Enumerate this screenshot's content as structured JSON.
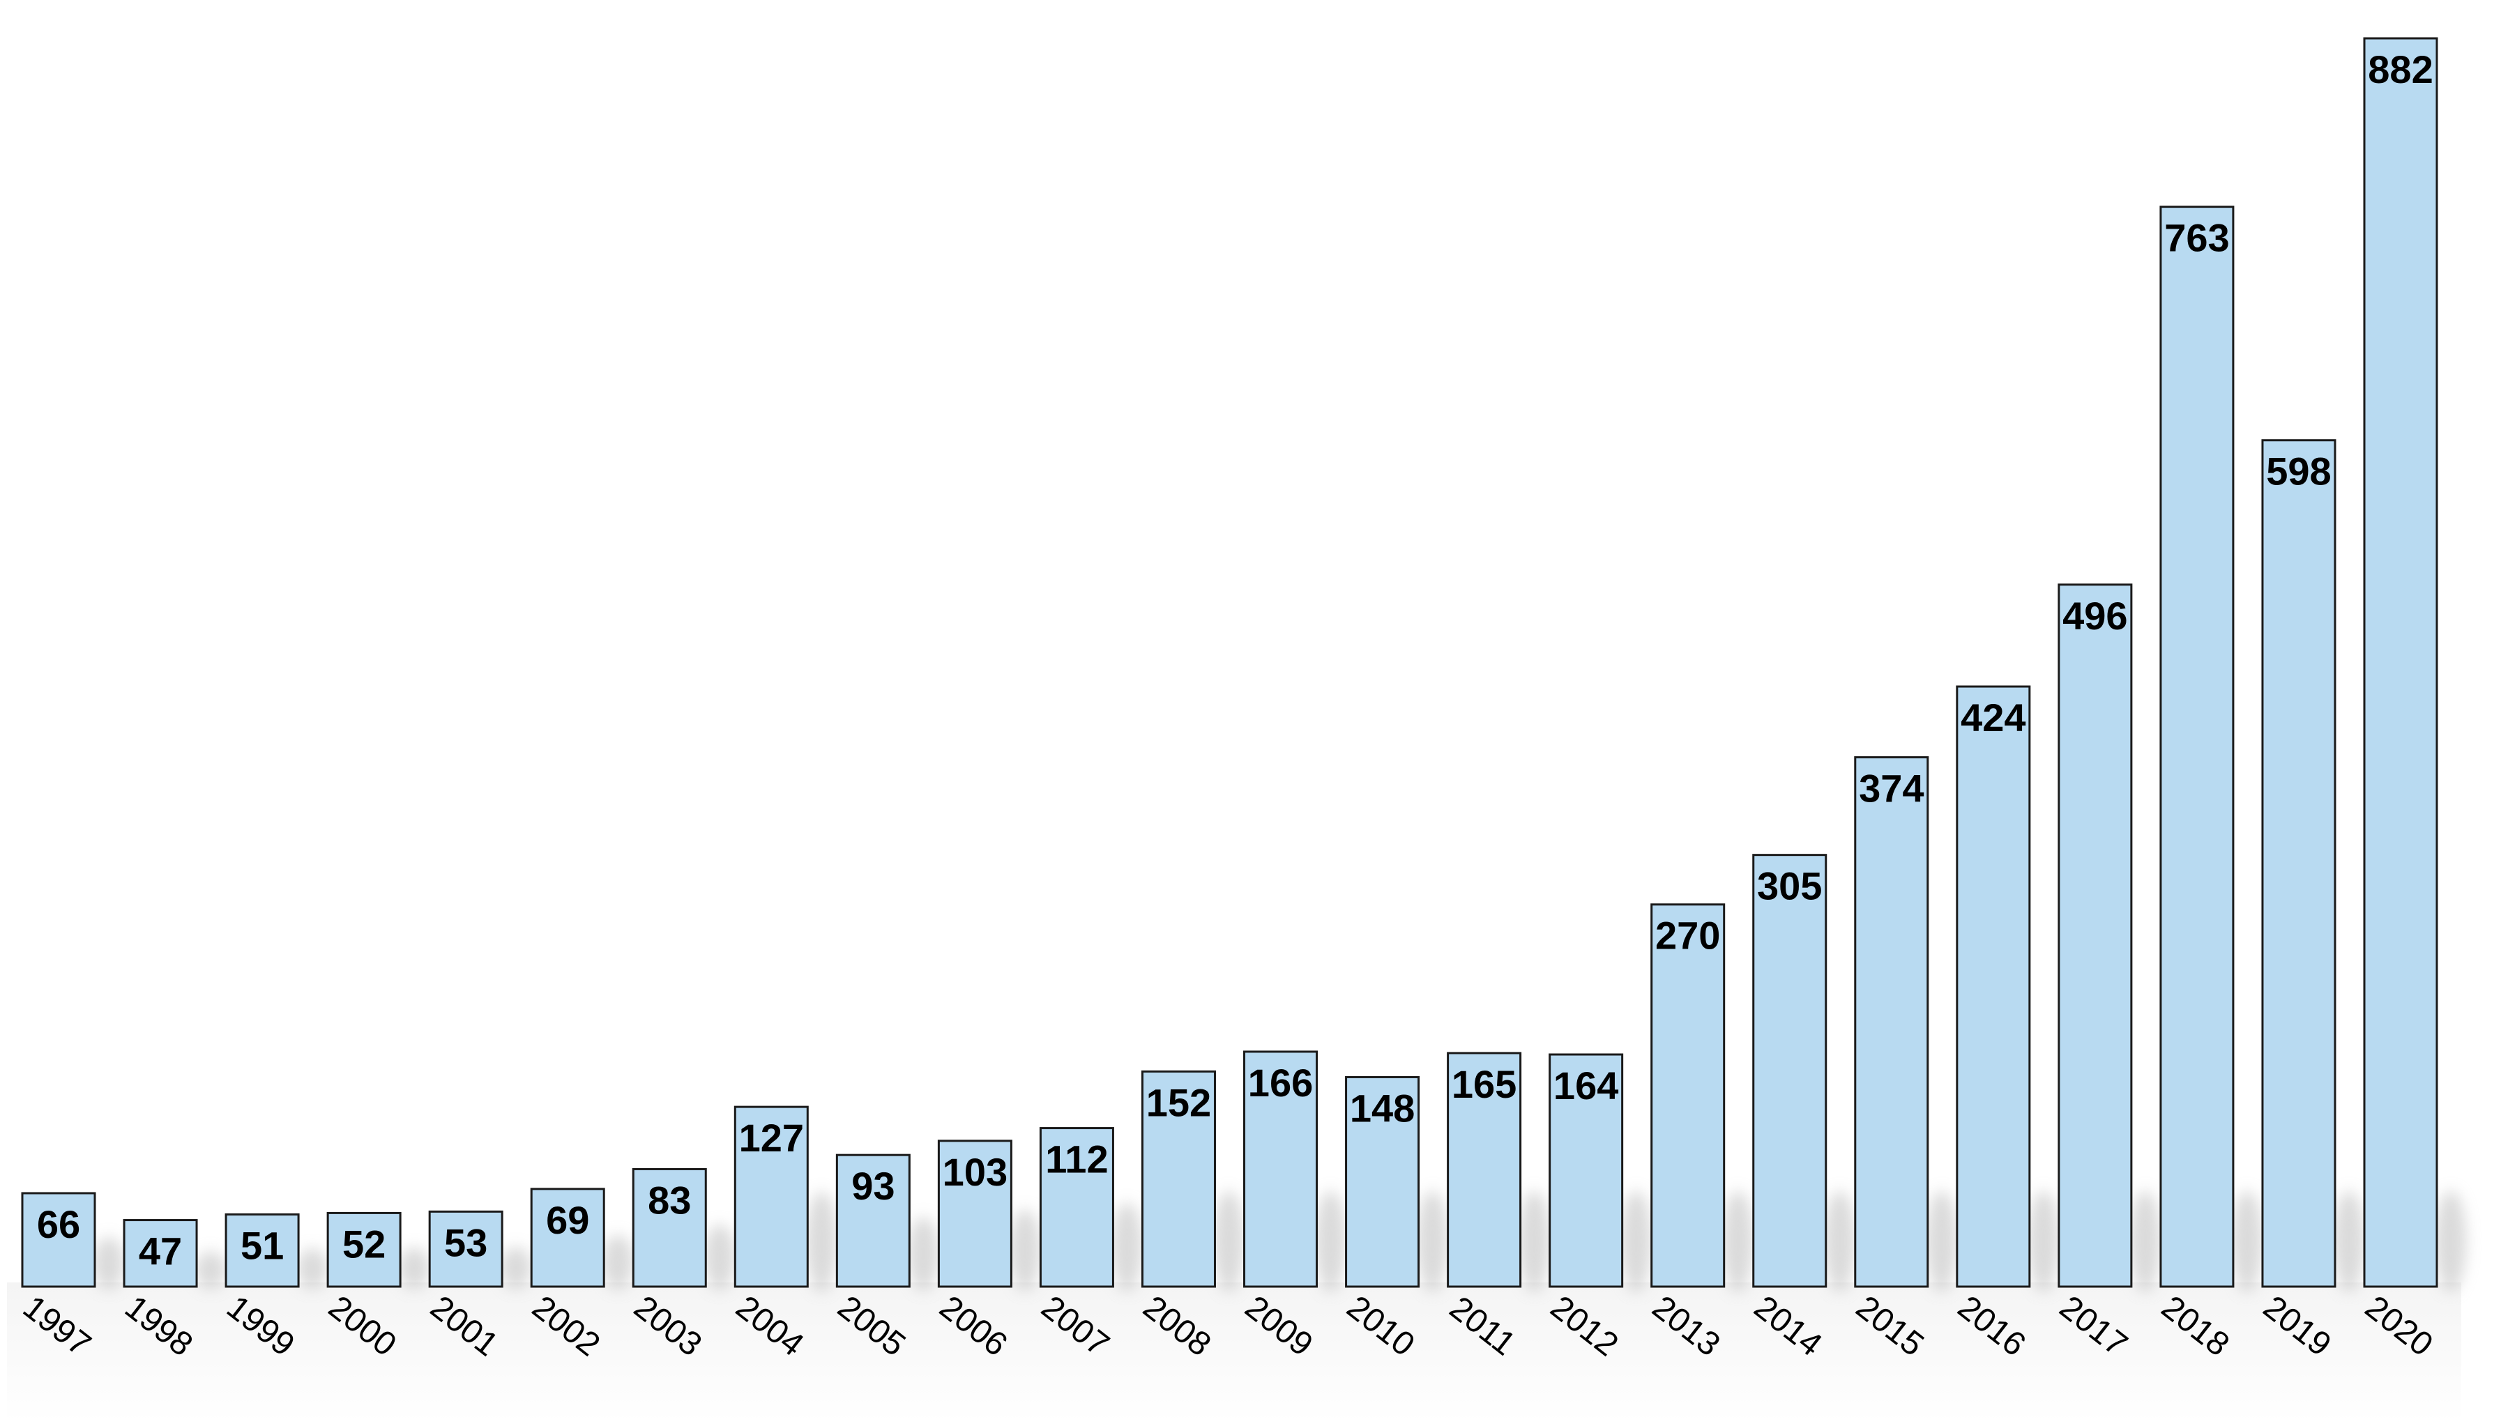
{
  "colors": {
    "bar_fill": "#b8daf1",
    "bar_stroke": "#1a1a1a",
    "background": "#ffffff",
    "floor": "#f2f2f2",
    "shadow": "#bdbdbd"
  },
  "chart_data": {
    "type": "bar",
    "title": "",
    "xlabel": "",
    "ylabel": "",
    "categories": [
      "1997",
      "1998",
      "1999",
      "2000",
      "2001",
      "2002",
      "2003",
      "2004",
      "2005",
      "2006",
      "2007",
      "2008",
      "2009",
      "2010",
      "2011",
      "2012",
      "2013",
      "2014",
      "2015",
      "2016",
      "2017",
      "2018",
      "2019",
      "2020"
    ],
    "values": [
      66,
      47,
      51,
      52,
      53,
      69,
      83,
      127,
      93,
      103,
      112,
      152,
      166,
      148,
      165,
      164,
      270,
      305,
      374,
      424,
      496,
      763,
      598,
      882
    ],
    "ylim": [
      0,
      882
    ],
    "data_labels": true,
    "grid": false,
    "legend": "none"
  }
}
